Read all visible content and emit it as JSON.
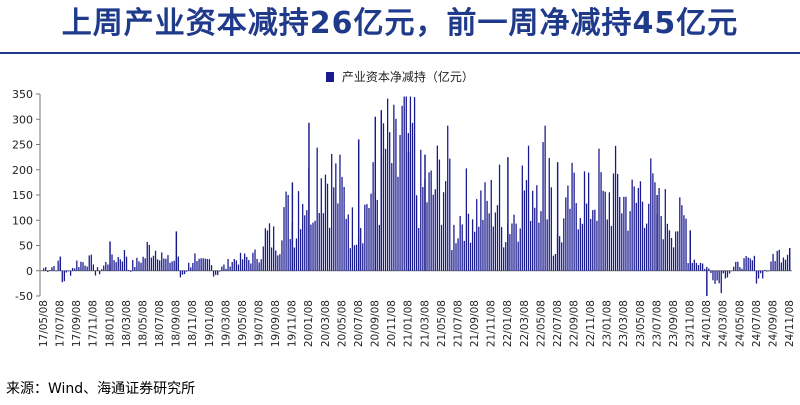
{
  "title": "上周产业资本减持26亿元，前一周净减持45亿元",
  "source": "来源：Wind、海通证券研究所",
  "colors": {
    "bar": "#1a1a8f",
    "title": "#1f3a8a",
    "axis": "#7a7a7a"
  },
  "chart_data": {
    "type": "bar",
    "series": [
      {
        "name": "产业资本净减持（亿元）"
      }
    ],
    "ylim": [
      -50,
      350
    ],
    "yticks": [
      -50,
      0,
      50,
      100,
      150,
      200,
      250,
      300,
      350
    ],
    "ytick_labels": [
      "-50",
      "0",
      "50",
      "100",
      "150",
      "200",
      "250",
      "300",
      "350"
    ],
    "xtick_labels": [
      "17/05/08",
      "17/07/08",
      "17/09/08",
      "17/11/08",
      "18/01/08",
      "18/03/08",
      "18/05/08",
      "18/07/08",
      "18/09/08",
      "18/11/08",
      "19/01/08",
      "19/03/08",
      "19/05/08",
      "19/07/08",
      "19/09/08",
      "19/11/08",
      "20/01/08",
      "20/03/08",
      "20/05/08",
      "20/07/08",
      "20/09/08",
      "20/11/08",
      "21/01/08",
      "21/03/08",
      "21/05/08",
      "21/07/08",
      "21/09/08",
      "21/11/08",
      "22/01/08",
      "22/03/08",
      "22/05/08",
      "22/07/08",
      "22/09/08",
      "22/11/08",
      "23/01/08",
      "23/03/08",
      "23/05/08",
      "23/07/08",
      "23/09/08",
      "23/11/08",
      "24/01/08",
      "24/03/08",
      "24/05/08",
      "24/07/08",
      "24/09/08",
      "24/11/08"
    ],
    "segments": [
      [
        5,
        12
      ],
      [
        -25,
        18
      ],
      [
        15,
        22
      ],
      [
        -10,
        25
      ],
      [
        20,
        35
      ],
      [
        5,
        28
      ],
      [
        45,
        40
      ],
      [
        20,
        20
      ],
      [
        -15,
        30
      ],
      [
        10,
        25
      ],
      [
        -8,
        15
      ],
      [
        20,
        25
      ],
      [
        20,
        40
      ],
      [
        70,
        60
      ],
      [
        130,
        80
      ],
      [
        160,
        150
      ],
      [
        220,
        180
      ],
      [
        180,
        130
      ],
      [
        80,
        120
      ],
      [
        140,
        160
      ],
      [
        250,
        200
      ],
      [
        270,
        250
      ],
      [
        160,
        150
      ],
      [
        170,
        190
      ],
      [
        60,
        140
      ],
      [
        110,
        130
      ],
      [
        120,
        150
      ],
      [
        80,
        120
      ],
      [
        160,
        180
      ],
      [
        190,
        220
      ],
      [
        30,
        120
      ],
      [
        140,
        160
      ],
      [
        120,
        180
      ],
      [
        120,
        180
      ],
      [
        140,
        130
      ],
      [
        160,
        150
      ],
      [
        120,
        110
      ],
      [
        90,
        100
      ],
      [
        30,
        10
      ],
      [
        10,
        -30
      ],
      [
        -10,
        10
      ],
      [
        15,
        20
      ],
      [
        -15,
        10
      ],
      [
        30,
        40
      ]
    ],
    "spikes": [
      {
        "x": "17/07/08",
        "value": 28
      },
      {
        "x": "18/01/08",
        "value": 58
      },
      {
        "x": "18/09/08",
        "value": 78
      },
      {
        "x": "19/11/08",
        "value": 175
      },
      {
        "x": "20/01/08",
        "value": 293
      },
      {
        "x": "20/07/08",
        "value": 260
      },
      {
        "x": "20/09/08",
        "value": 305
      },
      {
        "x": "20/09/08",
        "value": 318
      },
      {
        "x": "21/01/08",
        "value": 235
      },
      {
        "x": "21/03/08",
        "value": 230
      },
      {
        "x": "22/01/08",
        "value": 225
      },
      {
        "x": "22/07/08",
        "value": 215
      },
      {
        "x": "23/07/08",
        "value": 150
      },
      {
        "x": "23/11/08",
        "value": 80
      },
      {
        "x": "24/01/08",
        "value": -50
      },
      {
        "x": "24/11/08",
        "value": 45
      }
    ]
  }
}
